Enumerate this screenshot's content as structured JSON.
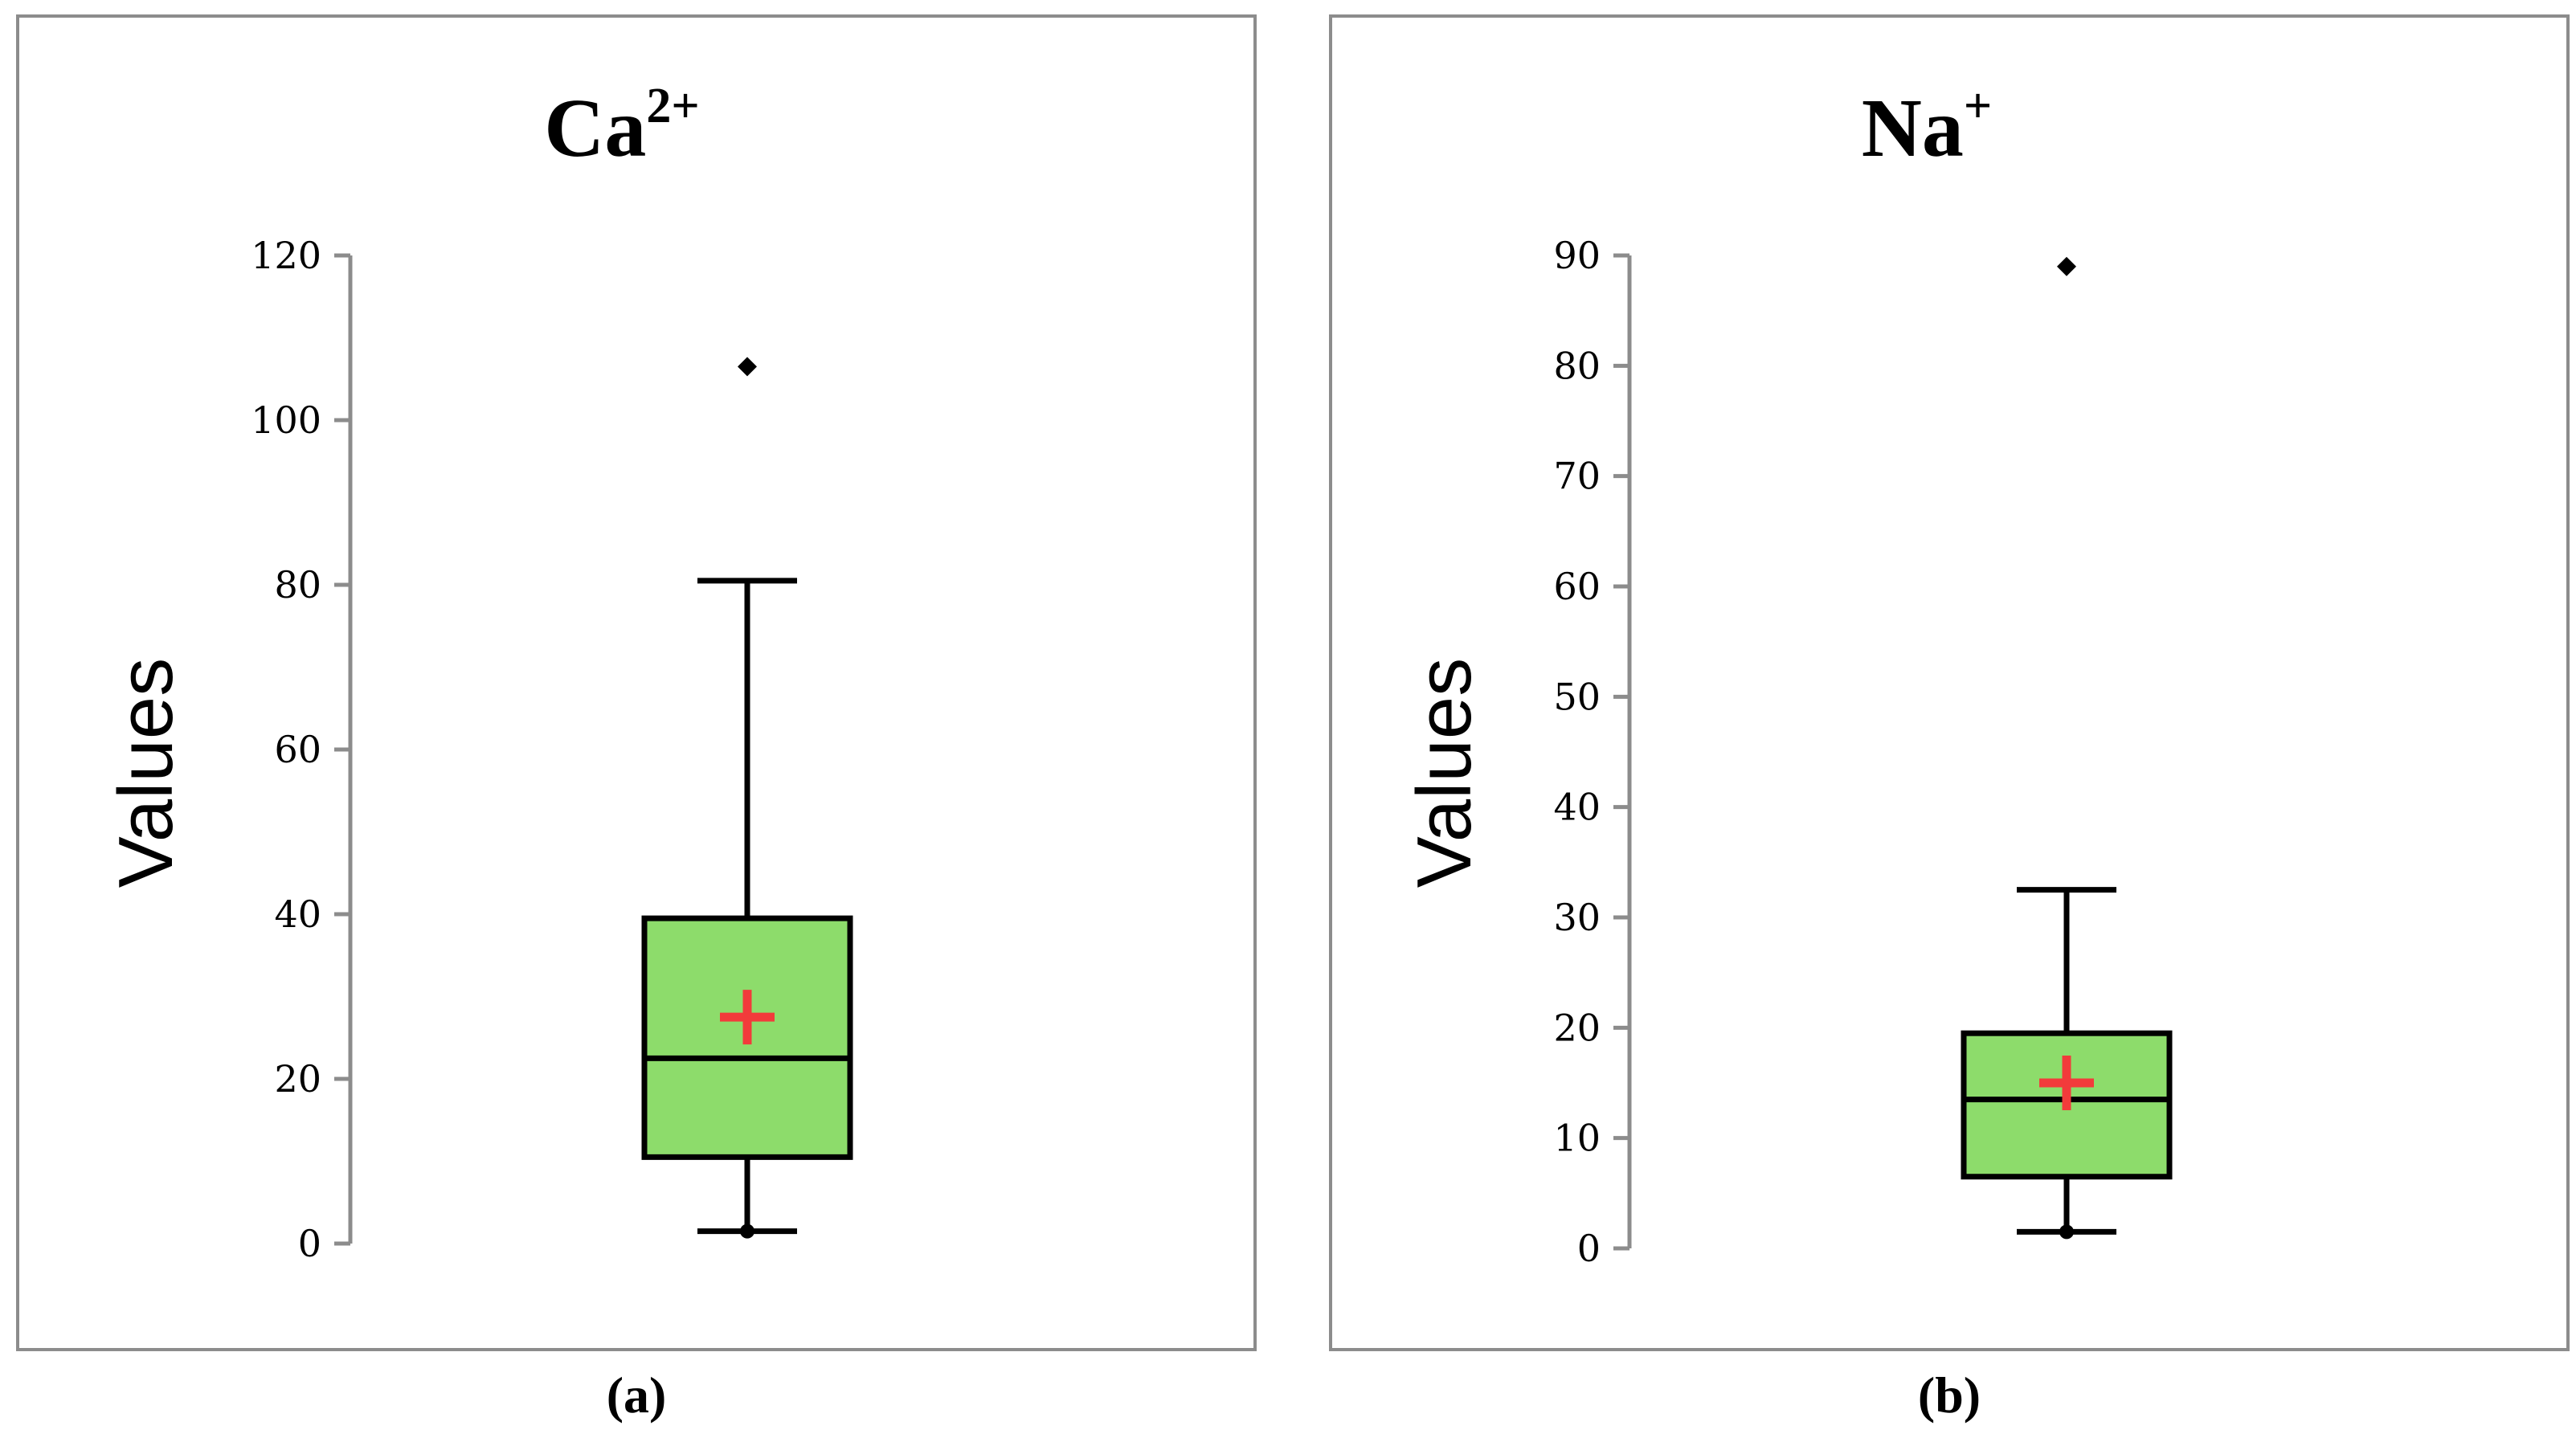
{
  "chart_data": [
    {
      "type": "box",
      "title_base": "Ca",
      "title_sup": "2+",
      "ylabel": "Values",
      "ylim": [
        0,
        120
      ],
      "yticks": [
        0,
        20,
        40,
        60,
        80,
        100,
        120
      ],
      "box": {
        "whisker_low": 1.5,
        "q1": 10.5,
        "median": 22.5,
        "q3": 39.5,
        "whisker_high": 80.5,
        "mean": 27.5
      },
      "outliers": [
        106.5
      ],
      "colors": {
        "box_fill": "#8ddc6b",
        "mean_marker": "#f23b3b",
        "axis": "#8c8c8c",
        "box_line": "#000000"
      },
      "caption": "(a)"
    },
    {
      "type": "box",
      "title_base": "Na",
      "title_sup": "+",
      "ylabel": "Values",
      "ylim": [
        0,
        90
      ],
      "yticks": [
        0,
        10,
        20,
        30,
        40,
        50,
        60,
        70,
        80,
        90
      ],
      "box": {
        "whisker_low": 1.5,
        "q1": 6.5,
        "median": 13.5,
        "q3": 19.5,
        "whisker_high": 32.5,
        "mean": 15
      },
      "outliers": [
        89
      ],
      "colors": {
        "box_fill": "#8ddc6b",
        "mean_marker": "#f23b3b",
        "axis": "#8c8c8c",
        "box_line": "#000000"
      },
      "caption": "(b)"
    }
  ]
}
